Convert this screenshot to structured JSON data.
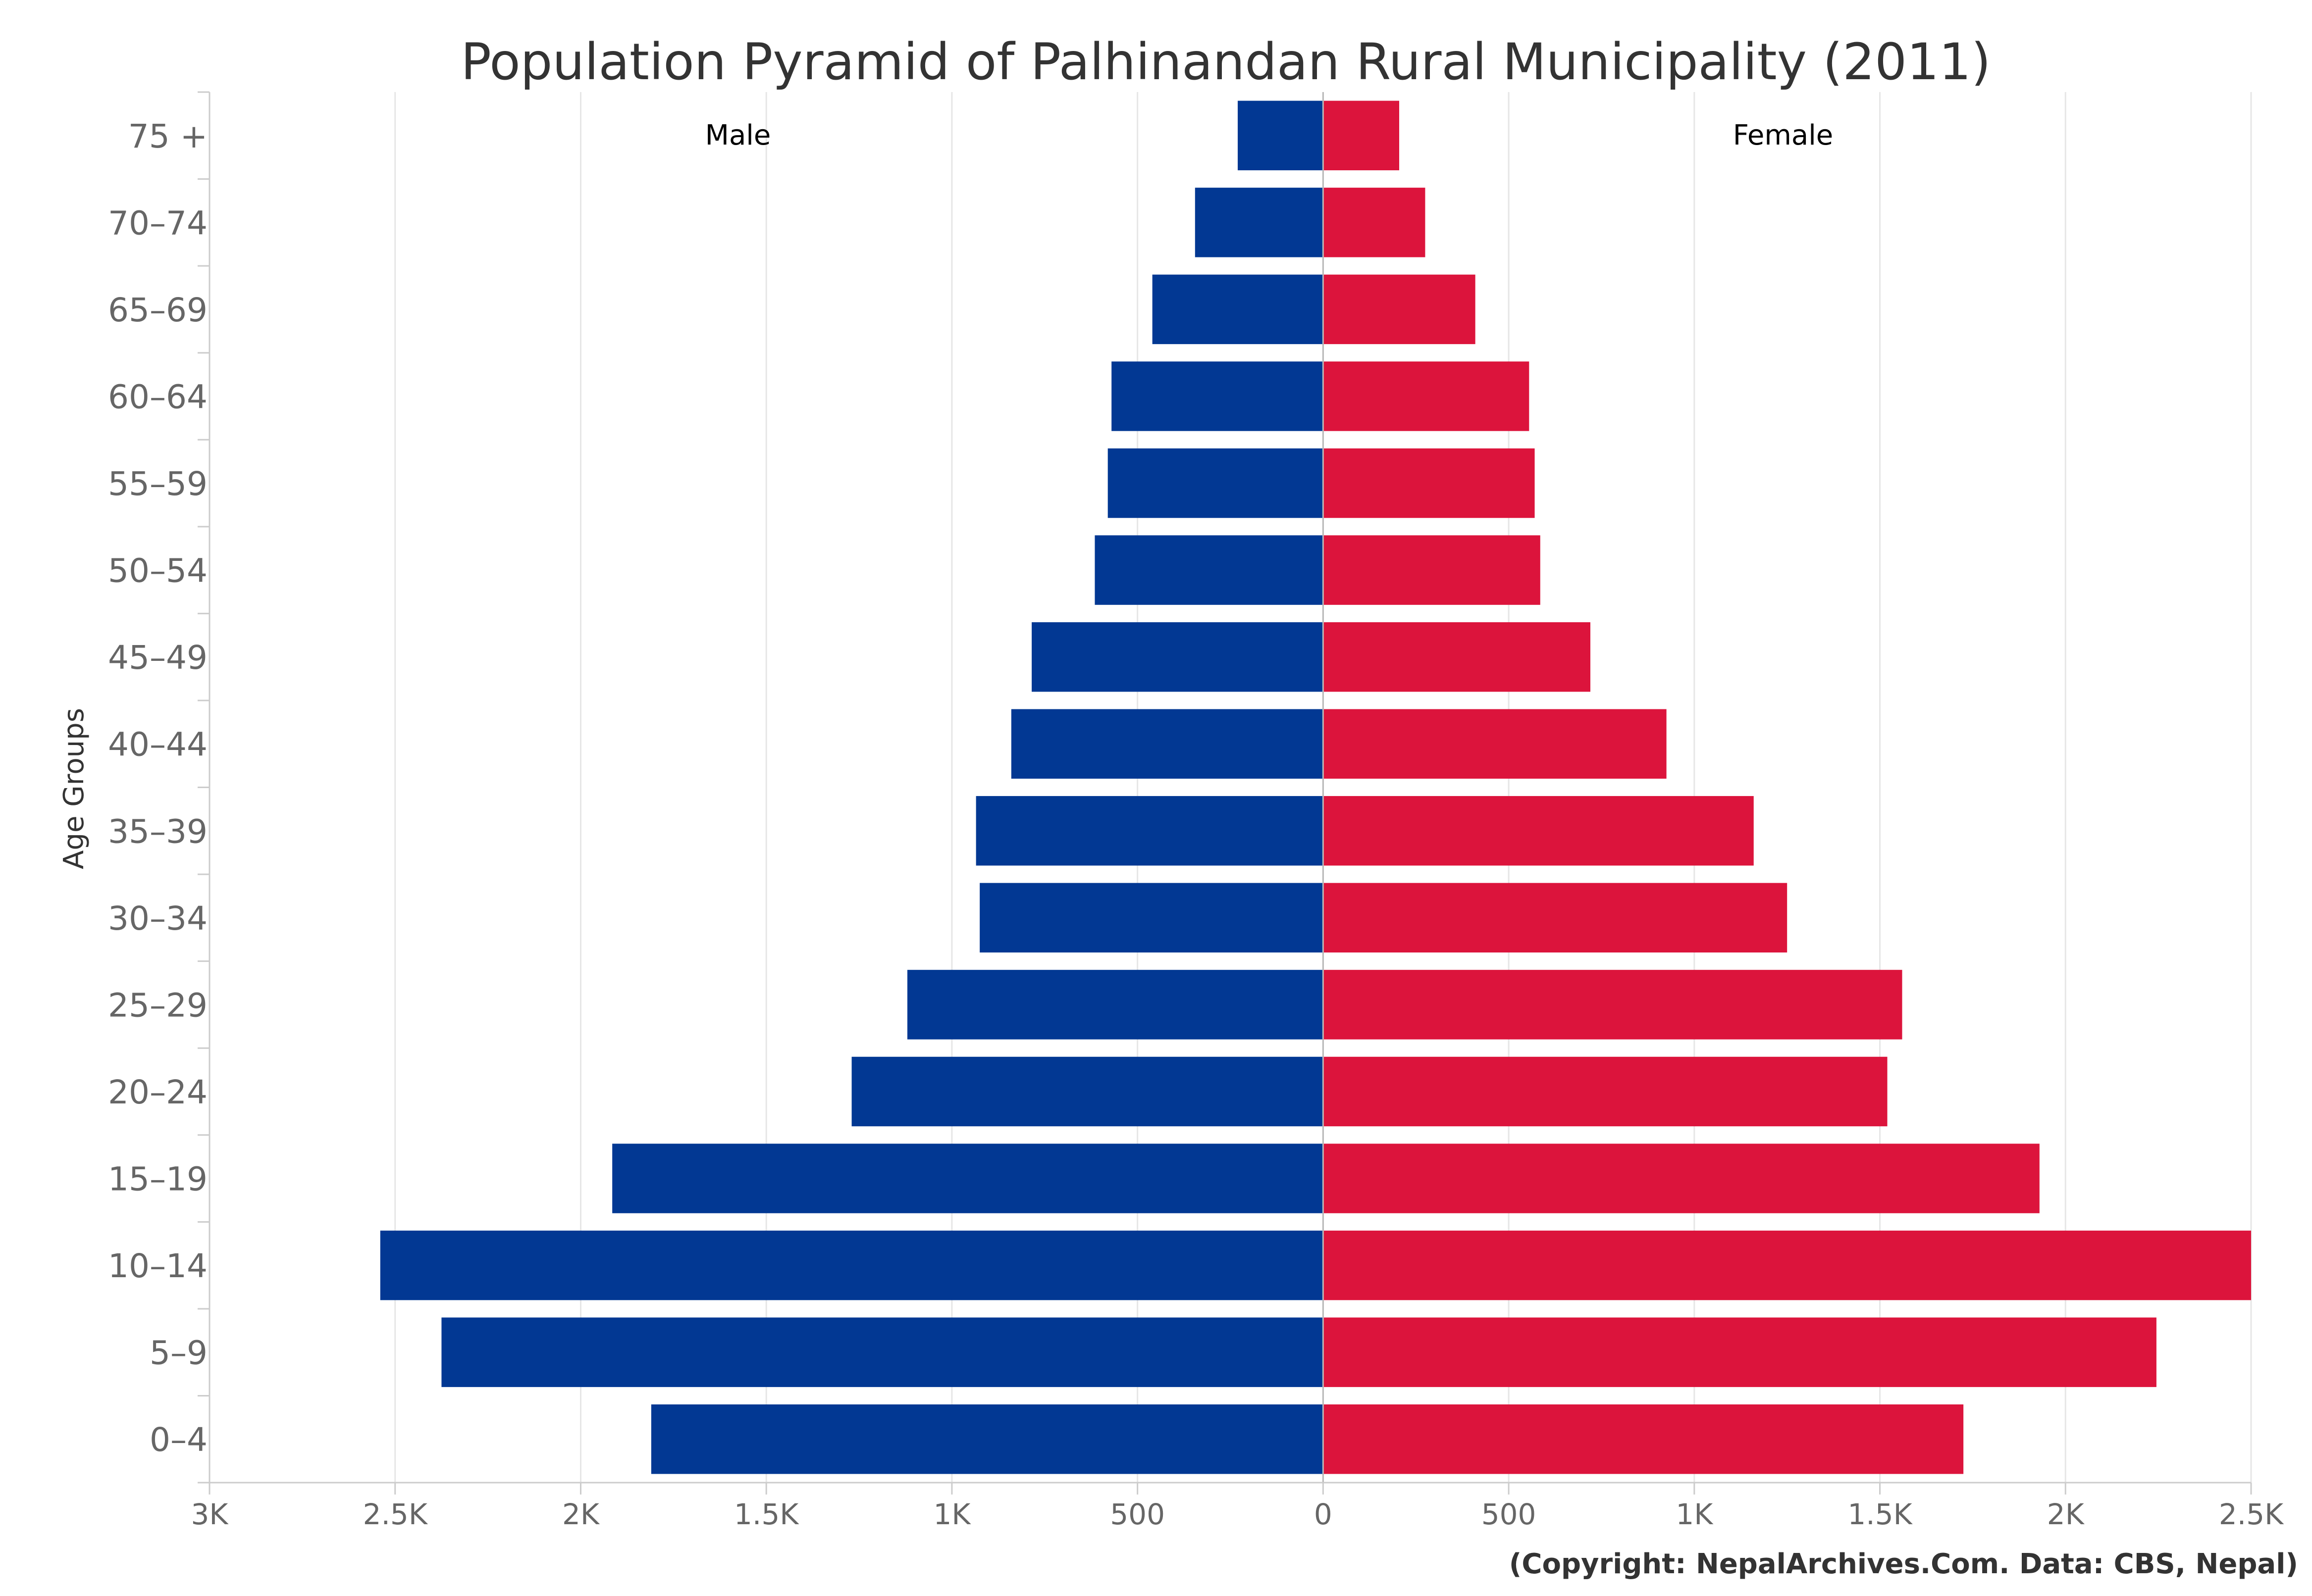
{
  "chart_data": {
    "type": "bar",
    "orientation": "horizontal",
    "title": "Population Pyramid of Palhinandan Rural Municipality (2011)",
    "ylabel": "Age Groups",
    "xlabel": "",
    "categories": [
      "0–4",
      "5–9",
      "10–14",
      "15–19",
      "20–24",
      "25–29",
      "30–34",
      "35–39",
      "40–44",
      "45–49",
      "50–54",
      "55–59",
      "60–64",
      "65–69",
      "70–74",
      "75 +"
    ],
    "series": [
      {
        "name": "Male",
        "color": "#023893",
        "values": [
          1810,
          2375,
          2540,
          1915,
          1270,
          1120,
          925,
          935,
          840,
          785,
          615,
          580,
          570,
          460,
          345,
          230
        ]
      },
      {
        "name": "Female",
        "color": "#dc143c",
        "values": [
          1725,
          2245,
          2500,
          1930,
          1520,
          1560,
          1250,
          1160,
          925,
          720,
          585,
          570,
          555,
          410,
          275,
          205
        ]
      }
    ],
    "xlim": [
      -3000,
      2500
    ],
    "xticks": [
      -3000,
      -2500,
      -2000,
      -1500,
      -1000,
      -500,
      0,
      500,
      1000,
      1500,
      2000,
      2500
    ],
    "xtick_labels": [
      "3K",
      "2.5K",
      "2K",
      "1.5K",
      "1K",
      "500",
      "0",
      "500",
      "1K",
      "1.5K",
      "2K",
      "2.5K"
    ],
    "grid": true,
    "credit": "(Copyright: NepalArchives.Com. Data: CBS, Nepal)"
  }
}
